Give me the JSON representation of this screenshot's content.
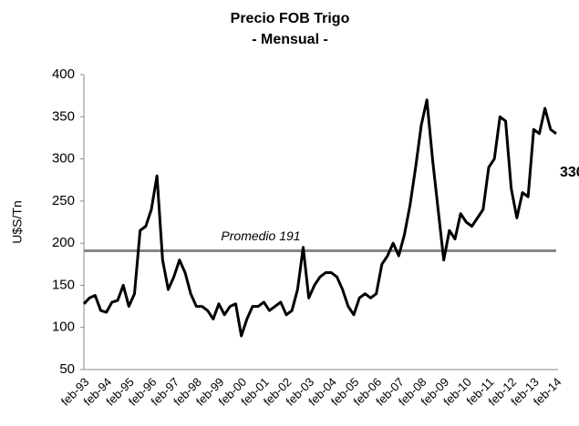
{
  "chart_data": {
    "type": "line",
    "title": "Precio FOB Trigo",
    "subtitle": "- Mensual -",
    "ylabel": "U$S/Tn",
    "categories": [
      "feb-93",
      null,
      null,
      null,
      "feb-94",
      null,
      null,
      null,
      "feb-95",
      null,
      null,
      null,
      "feb-96",
      null,
      null,
      null,
      "feb-97",
      null,
      null,
      null,
      "feb-98",
      null,
      null,
      null,
      "feb-99",
      null,
      null,
      null,
      "feb-00",
      null,
      null,
      null,
      "feb-01",
      null,
      null,
      null,
      "feb-02",
      null,
      null,
      null,
      "feb-03",
      null,
      null,
      null,
      "feb-04",
      null,
      null,
      null,
      "feb-05",
      null,
      null,
      null,
      "feb-06",
      null,
      null,
      null,
      "feb-07",
      null,
      null,
      null,
      "feb-08",
      null,
      null,
      null,
      "feb-09",
      null,
      null,
      null,
      "feb-10",
      null,
      null,
      null,
      "feb-11",
      null,
      null,
      null,
      "feb-12",
      null,
      null,
      null,
      "feb-13",
      null,
      null,
      null,
      "feb-14"
    ],
    "series": [
      {
        "name": "Precio FOB Trigo",
        "color": "#000000",
        "values": [
          128,
          135,
          138,
          120,
          118,
          130,
          132,
          150,
          125,
          140,
          215,
          220,
          240,
          280,
          180,
          145,
          160,
          180,
          165,
          140,
          125,
          125,
          120,
          110,
          128,
          115,
          125,
          128,
          90,
          110,
          125,
          125,
          130,
          120,
          125,
          130,
          115,
          120,
          145,
          195,
          135,
          150,
          160,
          165,
          165,
          160,
          145,
          125,
          115,
          135,
          140,
          135,
          140,
          175,
          185,
          200,
          185,
          210,
          245,
          290,
          340,
          370,
          300,
          240,
          180,
          215,
          205,
          235,
          225,
          220,
          230,
          240,
          290,
          300,
          350,
          345,
          265,
          230,
          260,
          255,
          335,
          330,
          360,
          335,
          330
        ]
      }
    ],
    "average_line": {
      "value": 191,
      "label": "Promedio 191",
      "color": "#878787"
    },
    "ylim": [
      50,
      400
    ],
    "yticks": [
      50,
      100,
      150,
      200,
      250,
      300,
      350,
      400
    ],
    "grid": false
  }
}
